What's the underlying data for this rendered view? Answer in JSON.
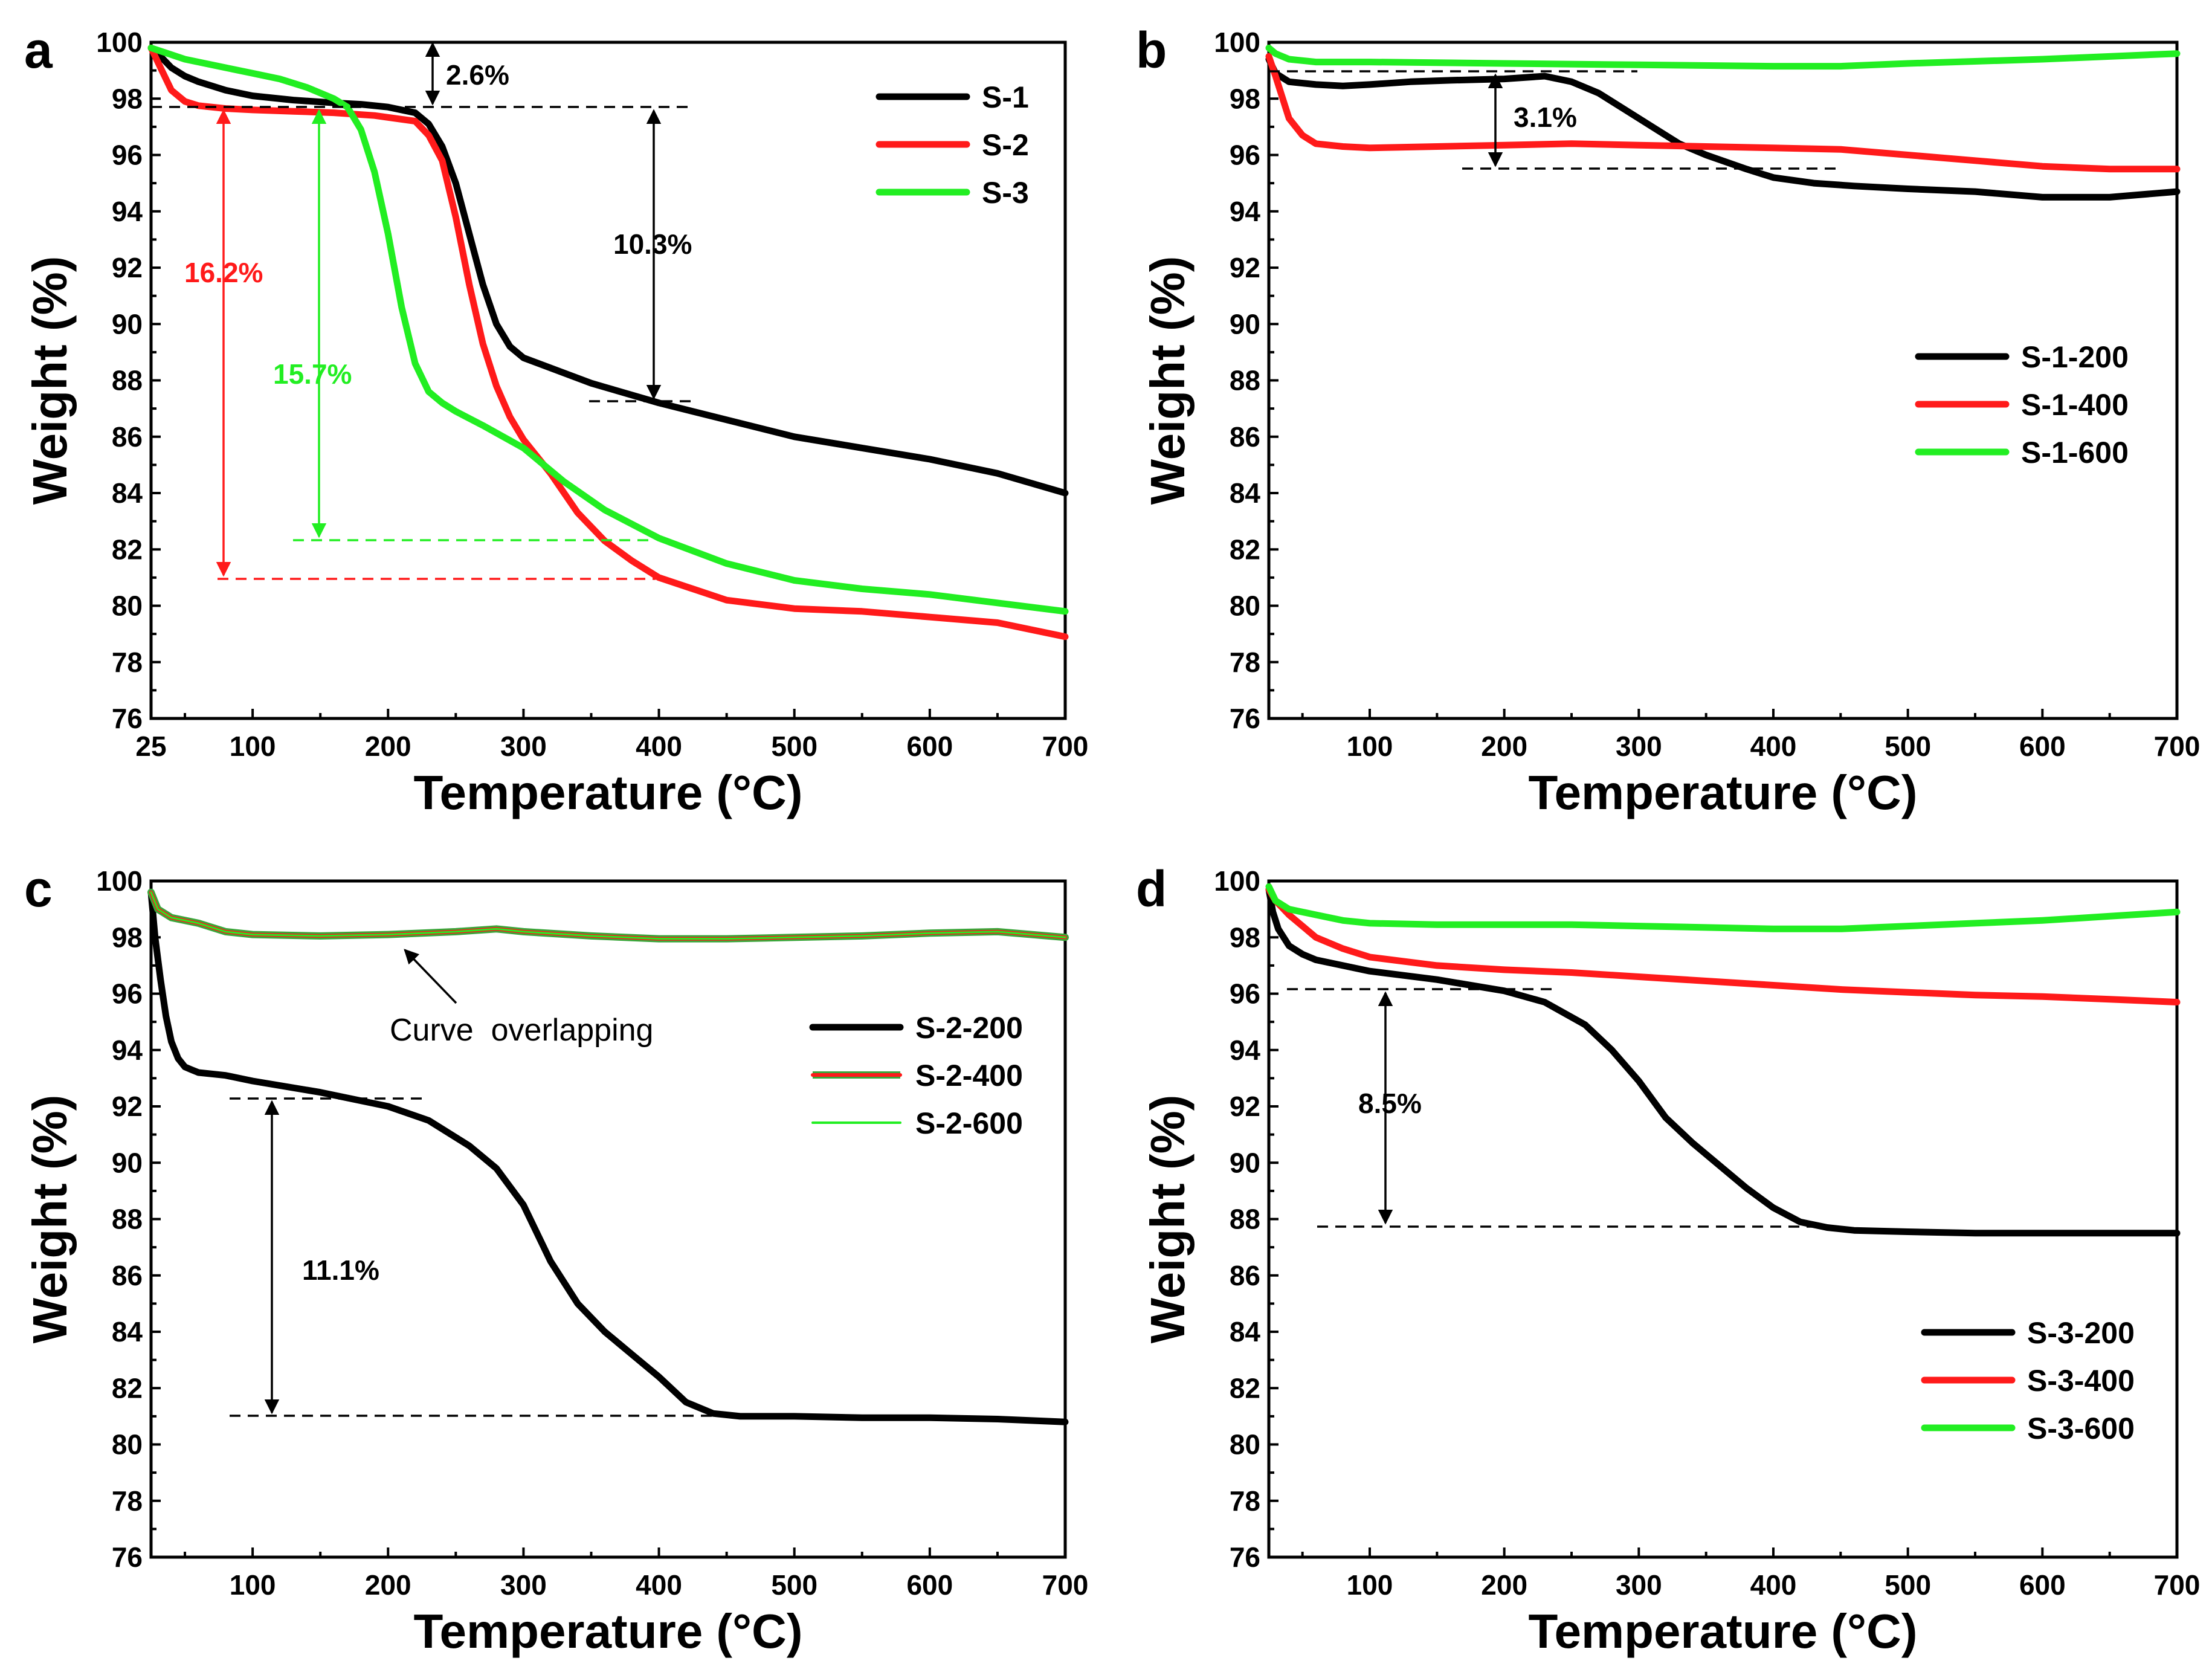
{
  "colors": {
    "black": "#000000",
    "red": "#ff1a1a",
    "green": "#22ee22",
    "overlap_outline": "#3aa63a"
  },
  "chart_data": [
    {
      "panel": "a",
      "type": "line",
      "xlabel": "Temperature (°C)",
      "ylabel": "Weight (%)",
      "xlim": [
        25,
        700
      ],
      "ylim": [
        76,
        100
      ],
      "xticks": [
        25,
        100,
        200,
        300,
        400,
        500,
        600,
        700
      ],
      "yticks": [
        76,
        78,
        80,
        82,
        84,
        86,
        88,
        90,
        92,
        94,
        96,
        98,
        100
      ],
      "legend": {
        "placement": "top-right",
        "entries": [
          "S-1",
          "S-2",
          "S-3"
        ]
      },
      "series": [
        {
          "name": "S-1",
          "color": "#000000",
          "x": [
            25,
            30,
            40,
            50,
            60,
            80,
            100,
            130,
            160,
            180,
            200,
            220,
            230,
            240,
            250,
            260,
            270,
            280,
            290,
            300,
            350,
            400,
            450,
            500,
            550,
            600,
            650,
            700
          ],
          "y": [
            99.8,
            99.6,
            99.1,
            98.8,
            98.6,
            98.3,
            98.1,
            97.95,
            97.85,
            97.8,
            97.7,
            97.5,
            97.1,
            96.3,
            95.0,
            93.2,
            91.4,
            90.0,
            89.2,
            88.8,
            87.9,
            87.2,
            86.6,
            86.0,
            85.6,
            85.2,
            84.7,
            84.0
          ]
        },
        {
          "name": "S-2",
          "color": "#ff1a1a",
          "x": [
            25,
            30,
            40,
            50,
            60,
            80,
            100,
            130,
            160,
            190,
            220,
            230,
            240,
            250,
            260,
            270,
            280,
            290,
            300,
            320,
            340,
            360,
            380,
            400,
            450,
            500,
            550,
            600,
            650,
            700
          ],
          "y": [
            99.8,
            99.3,
            98.3,
            97.9,
            97.75,
            97.65,
            97.6,
            97.55,
            97.5,
            97.4,
            97.2,
            96.7,
            95.8,
            93.8,
            91.4,
            89.3,
            87.8,
            86.7,
            85.9,
            84.7,
            83.3,
            82.3,
            81.6,
            81.0,
            80.2,
            79.9,
            79.8,
            79.6,
            79.4,
            78.9
          ]
        },
        {
          "name": "S-3",
          "color": "#22ee22",
          "x": [
            25,
            50,
            80,
            100,
            120,
            140,
            160,
            170,
            180,
            190,
            200,
            210,
            220,
            230,
            240,
            250,
            270,
            300,
            330,
            360,
            400,
            450,
            500,
            550,
            600,
            650,
            700
          ],
          "y": [
            99.8,
            99.4,
            99.1,
            98.9,
            98.7,
            98.4,
            98.0,
            97.7,
            96.9,
            95.4,
            93.2,
            90.6,
            88.6,
            87.6,
            87.2,
            86.9,
            86.4,
            85.6,
            84.4,
            83.4,
            82.4,
            81.5,
            80.9,
            80.6,
            80.4,
            80.1,
            79.8
          ]
        }
      ],
      "annotations": [
        {
          "label": "2.6%",
          "color": "#000000"
        },
        {
          "label": "10.3%",
          "color": "#000000"
        },
        {
          "label": "16.2%",
          "color": "#ff1a1a"
        },
        {
          "label": "15.7%",
          "color": "#22ee22"
        }
      ]
    },
    {
      "panel": "b",
      "type": "line",
      "xlabel": "Temperature (°C)",
      "ylabel": "Weight (%)",
      "xlim": [
        25,
        700
      ],
      "ylim": [
        76,
        100
      ],
      "xticks": [
        100,
        200,
        300,
        400,
        500,
        600,
        700
      ],
      "yticks": [
        76,
        78,
        80,
        82,
        84,
        86,
        88,
        90,
        92,
        94,
        96,
        98,
        100
      ],
      "legend": {
        "placement": "center-right",
        "entries": [
          "S-1-200",
          "S-1-400",
          "S-1-600"
        ]
      },
      "series": [
        {
          "name": "S-1-200",
          "color": "#000000",
          "x": [
            25,
            30,
            40,
            60,
            80,
            100,
            130,
            160,
            200,
            230,
            250,
            270,
            290,
            310,
            330,
            350,
            380,
            400,
            430,
            460,
            500,
            550,
            600,
            650,
            700
          ],
          "y": [
            99.4,
            98.9,
            98.6,
            98.5,
            98.45,
            98.5,
            98.6,
            98.65,
            98.7,
            98.8,
            98.6,
            98.2,
            97.6,
            97.0,
            96.4,
            96.0,
            95.5,
            95.2,
            95.0,
            94.9,
            94.8,
            94.7,
            94.5,
            94.5,
            94.7
          ]
        },
        {
          "name": "S-1-400",
          "color": "#ff1a1a",
          "x": [
            25,
            30,
            40,
            50,
            60,
            80,
            100,
            150,
            200,
            250,
            300,
            350,
            400,
            450,
            500,
            550,
            600,
            650,
            700
          ],
          "y": [
            99.5,
            98.8,
            97.3,
            96.7,
            96.4,
            96.3,
            96.25,
            96.3,
            96.35,
            96.4,
            96.35,
            96.3,
            96.25,
            96.2,
            96.0,
            95.8,
            95.6,
            95.5,
            95.5
          ]
        },
        {
          "name": "S-1-600",
          "color": "#22ee22",
          "x": [
            25,
            30,
            40,
            60,
            100,
            200,
            300,
            400,
            450,
            500,
            600,
            700
          ],
          "y": [
            99.8,
            99.6,
            99.4,
            99.3,
            99.3,
            99.25,
            99.2,
            99.15,
            99.15,
            99.25,
            99.4,
            99.6
          ]
        }
      ],
      "annotations": [
        {
          "label": "3.1%",
          "color": "#000000"
        }
      ]
    },
    {
      "panel": "c",
      "type": "line",
      "xlabel": "Temperature (°C)",
      "ylabel": "Weight (%)",
      "xlim": [
        25,
        700
      ],
      "ylim": [
        76,
        100
      ],
      "xticks": [
        100,
        200,
        300,
        400,
        500,
        600,
        700
      ],
      "yticks": [
        76,
        78,
        80,
        82,
        84,
        86,
        88,
        90,
        92,
        94,
        96,
        98,
        100
      ],
      "legend": {
        "placement": "top-right",
        "entries": [
          "S-2-200",
          "S-2-400",
          "S-2-600"
        ]
      },
      "series": [
        {
          "name": "S-2-200",
          "color": "#000000",
          "x": [
            25,
            28,
            32,
            36,
            40,
            45,
            50,
            55,
            60,
            80,
            100,
            150,
            200,
            230,
            260,
            280,
            300,
            320,
            340,
            360,
            380,
            400,
            420,
            440,
            460,
            500,
            550,
            600,
            650,
            700
          ],
          "y": [
            99.6,
            98.0,
            96.5,
            95.2,
            94.3,
            93.7,
            93.4,
            93.3,
            93.2,
            93.1,
            92.9,
            92.5,
            92.0,
            91.5,
            90.6,
            89.8,
            88.5,
            86.5,
            85.0,
            84.0,
            83.2,
            82.4,
            81.5,
            81.1,
            81.0,
            81.0,
            80.95,
            80.95,
            80.9,
            80.8
          ]
        },
        {
          "name": "S-2-400",
          "color": "#ff1a1a",
          "x": [
            25,
            30,
            40,
            60,
            80,
            100,
            150,
            200,
            250,
            280,
            300,
            350,
            400,
            450,
            500,
            550,
            600,
            650,
            700
          ],
          "y": [
            99.6,
            99.0,
            98.7,
            98.5,
            98.2,
            98.1,
            98.05,
            98.1,
            98.2,
            98.3,
            98.2,
            98.05,
            97.95,
            97.95,
            98.0,
            98.05,
            98.15,
            98.2,
            98.0
          ]
        },
        {
          "name": "S-2-600",
          "color": "#22ee22",
          "x": [
            25,
            30,
            40,
            60,
            80,
            100,
            150,
            200,
            250,
            280,
            300,
            350,
            400,
            450,
            500,
            550,
            600,
            650,
            700
          ],
          "y": [
            99.6,
            99.0,
            98.7,
            98.5,
            98.2,
            98.1,
            98.05,
            98.1,
            98.2,
            98.3,
            98.2,
            98.05,
            97.95,
            97.95,
            98.0,
            98.05,
            98.15,
            98.2,
            98.0
          ]
        }
      ],
      "annotations": [
        {
          "label": "11.1%",
          "color": "#000000"
        },
        {
          "label": "Curve  overlapping",
          "color": "#000000"
        }
      ]
    },
    {
      "panel": "d",
      "type": "line",
      "xlabel": "Temperature (°C)",
      "ylabel": "Weight (%)",
      "xlim": [
        25,
        700
      ],
      "ylim": [
        76,
        100
      ],
      "xticks": [
        100,
        200,
        300,
        400,
        500,
        600,
        700
      ],
      "yticks": [
        76,
        78,
        80,
        82,
        84,
        86,
        88,
        90,
        92,
        94,
        96,
        98,
        100
      ],
      "legend": {
        "placement": "bottom-right",
        "entries": [
          "S-3-200",
          "S-3-400",
          "S-3-600"
        ]
      },
      "series": [
        {
          "name": "S-3-200",
          "color": "#000000",
          "x": [
            25,
            28,
            32,
            40,
            50,
            60,
            80,
            100,
            150,
            200,
            230,
            260,
            280,
            300,
            320,
            340,
            360,
            380,
            400,
            420,
            440,
            460,
            500,
            550,
            600,
            650,
            700
          ],
          "y": [
            99.7,
            98.9,
            98.3,
            97.7,
            97.4,
            97.2,
            97.0,
            96.8,
            96.5,
            96.1,
            95.7,
            94.9,
            94.0,
            92.9,
            91.6,
            90.7,
            89.9,
            89.1,
            88.4,
            87.9,
            87.7,
            87.6,
            87.55,
            87.5,
            87.5,
            87.5,
            87.5
          ]
        },
        {
          "name": "S-3-400",
          "color": "#ff1a1a",
          "x": [
            25,
            30,
            40,
            50,
            60,
            80,
            100,
            150,
            200,
            250,
            300,
            350,
            400,
            450,
            500,
            550,
            600,
            650,
            700
          ],
          "y": [
            99.7,
            99.3,
            98.8,
            98.4,
            98.0,
            97.6,
            97.3,
            97.0,
            96.85,
            96.75,
            96.6,
            96.45,
            96.3,
            96.15,
            96.05,
            95.95,
            95.9,
            95.8,
            95.7
          ]
        },
        {
          "name": "S-3-600",
          "color": "#22ee22",
          "x": [
            25,
            30,
            40,
            60,
            80,
            100,
            150,
            200,
            250,
            300,
            350,
            400,
            450,
            500,
            550,
            600,
            650,
            700
          ],
          "y": [
            99.8,
            99.3,
            99.0,
            98.8,
            98.6,
            98.5,
            98.45,
            98.45,
            98.45,
            98.4,
            98.35,
            98.3,
            98.3,
            98.4,
            98.5,
            98.6,
            98.75,
            98.9
          ]
        }
      ],
      "annotations": [
        {
          "label": "8.5%",
          "color": "#000000"
        }
      ]
    }
  ]
}
